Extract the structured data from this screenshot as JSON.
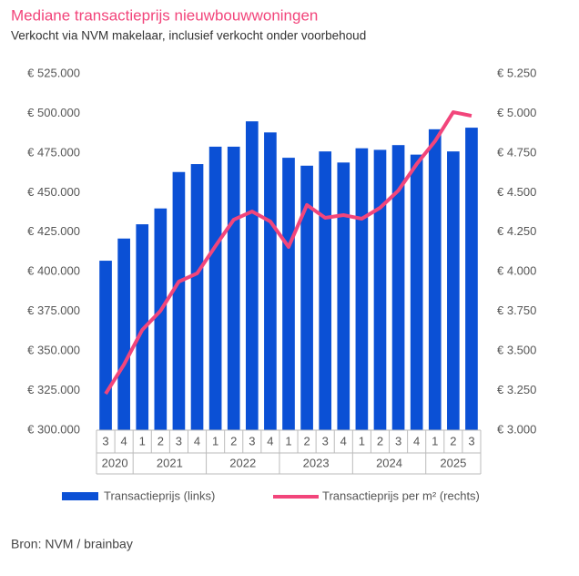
{
  "chart_data": {
    "type": "bar-line",
    "title": "Mediane transactieprijs nieuwbouwwoningen",
    "subtitle": "Verkocht via NVM makelaar, inclusief verkocht onder voorbehoud",
    "source": "Bron: NVM / brainbay",
    "groups": [
      {
        "label": "2020",
        "categories": [
          "3",
          "4"
        ]
      },
      {
        "label": "2021",
        "categories": [
          "1",
          "2",
          "3",
          "4"
        ]
      },
      {
        "label": "2022",
        "categories": [
          "1",
          "2",
          "3",
          "4"
        ]
      },
      {
        "label": "2023",
        "categories": [
          "1",
          "2",
          "3",
          "4"
        ]
      },
      {
        "label": "2024",
        "categories": [
          "1",
          "2",
          "3",
          "4"
        ]
      },
      {
        "label": "2025",
        "categories": [
          "1",
          "2",
          "3"
        ]
      }
    ],
    "series": [
      {
        "name": "Transactieprijs (links)",
        "type": "bar",
        "color": "#0b50d5",
        "values": [
          407000,
          421000,
          430000,
          440000,
          463000,
          468000,
          479000,
          479000,
          495000,
          488000,
          472000,
          467000,
          476000,
          469000,
          478000,
          477000,
          480000,
          474000,
          490000,
          476000,
          491000
        ]
      },
      {
        "name": "Transactieprijs per m² (rechts)",
        "type": "line",
        "axis": "y2",
        "color": "#f2457b",
        "values": [
          3230,
          3414,
          3633,
          3754,
          3938,
          3990,
          4162,
          4329,
          4381,
          4318,
          4157,
          4422,
          4341,
          4358,
          4335,
          4404,
          4513,
          4680,
          4824,
          5008,
          4985
        ]
      }
    ],
    "ylim": [
      300000,
      525000
    ],
    "yticks": [
      {
        "value": 300000,
        "label": "€ 300.000"
      },
      {
        "value": 325000,
        "label": "€ 325.000"
      },
      {
        "value": 350000,
        "label": "€ 350.000"
      },
      {
        "value": 375000,
        "label": "€ 375.000"
      },
      {
        "value": 400000,
        "label": "€ 400.000"
      },
      {
        "value": 425000,
        "label": "€ 425.000"
      },
      {
        "value": 450000,
        "label": "€ 450.000"
      },
      {
        "value": 475000,
        "label": "€ 475.000"
      },
      {
        "value": 500000,
        "label": "€ 500.000"
      },
      {
        "value": 525000,
        "label": "€ 525.000"
      }
    ],
    "y2lim": [
      3000,
      5250
    ],
    "y2ticks": [
      {
        "value": 3000,
        "label": "€ 3.000"
      },
      {
        "value": 3250,
        "label": "€ 3.250"
      },
      {
        "value": 3500,
        "label": "€ 3.500"
      },
      {
        "value": 3750,
        "label": "€ 3.750"
      },
      {
        "value": 4000,
        "label": "€ 4.000"
      },
      {
        "value": 4250,
        "label": "€ 4.250"
      },
      {
        "value": 4500,
        "label": "€ 4.500"
      },
      {
        "value": 4750,
        "label": "€ 4.750"
      },
      {
        "value": 5000,
        "label": "€ 5.000"
      },
      {
        "value": 5250,
        "label": "€ 5.250"
      }
    ],
    "grid": false
  }
}
